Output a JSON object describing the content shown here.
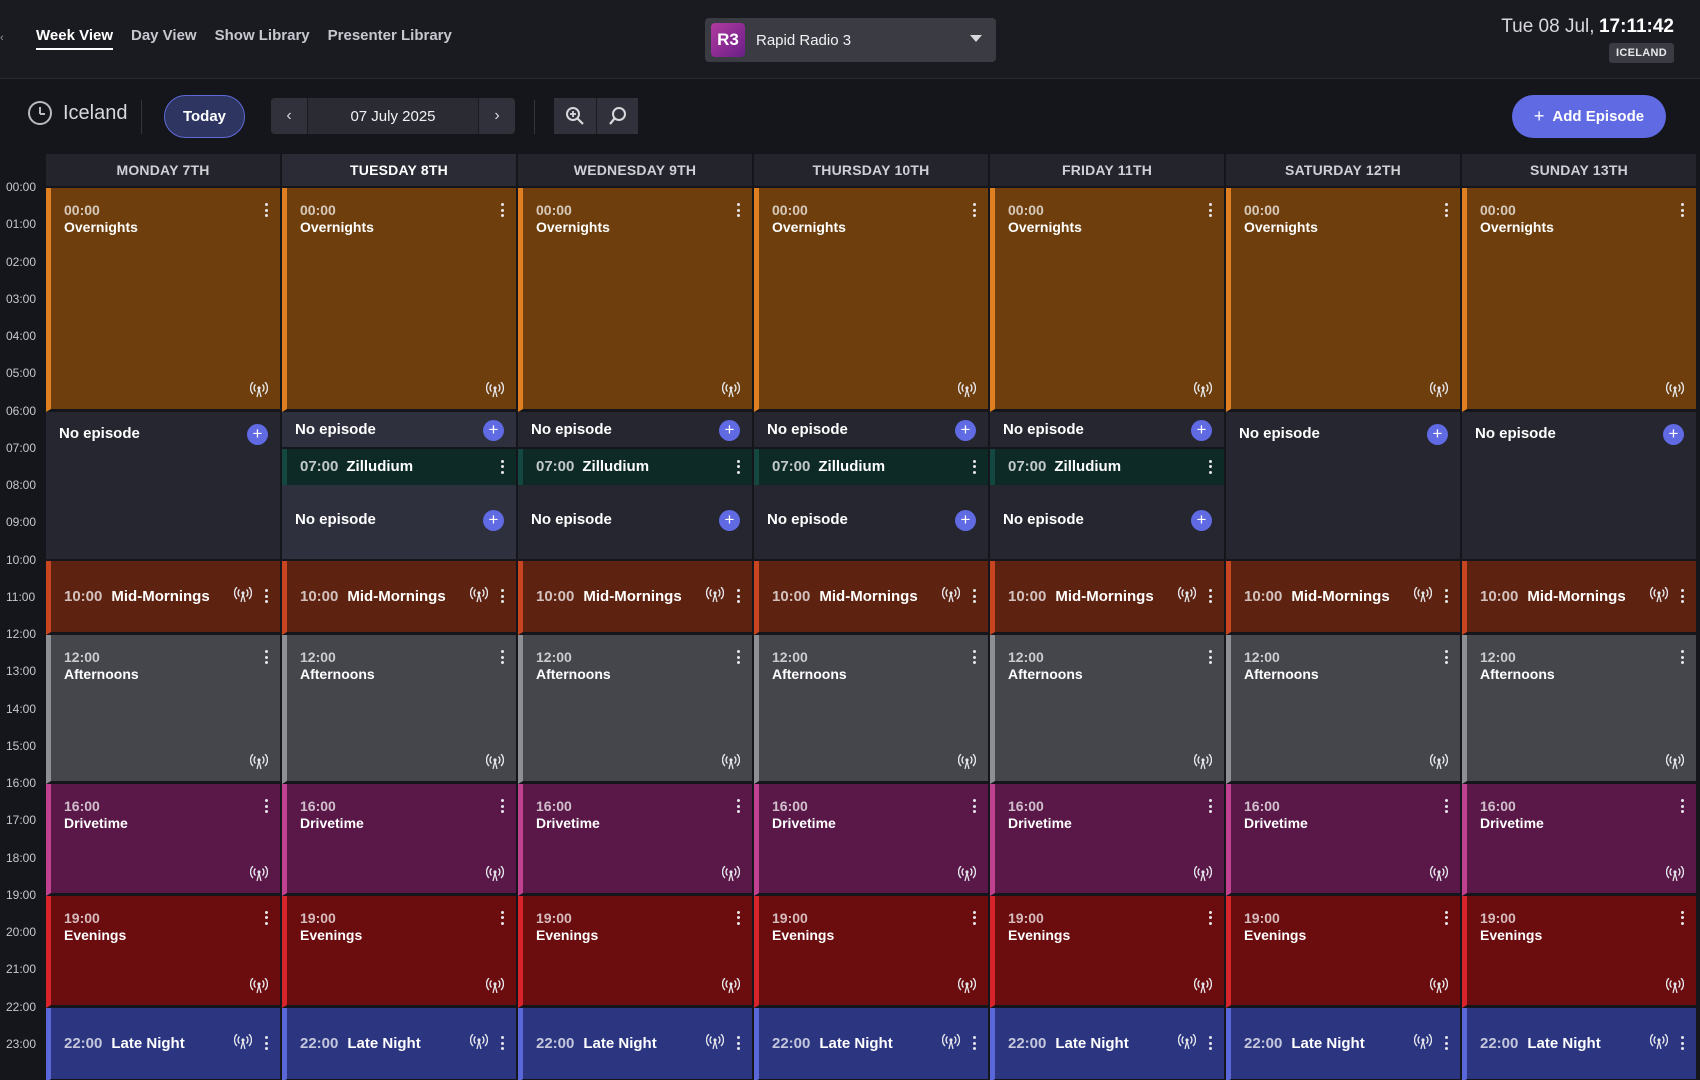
{
  "nav": {
    "items": [
      "Week View",
      "Day View",
      "Show Library",
      "Presenter Library"
    ],
    "active": "Week View"
  },
  "station": {
    "badge": "R3",
    "name": "Rapid Radio 3"
  },
  "clock": {
    "date": "Tue 08 Jul,",
    "time": "17:11:42",
    "timezone_badge": "ICELAND"
  },
  "toolbar": {
    "timezone_label": "Iceland",
    "today_label": "Today",
    "current_date": "07 July 2025",
    "prev_arrow": "‹",
    "next_arrow": "›",
    "add_episode_label": "Add Episode"
  },
  "hours": [
    "00:00",
    "01:00",
    "02:00",
    "03:00",
    "04:00",
    "05:00",
    "06:00",
    "07:00",
    "08:00",
    "09:00",
    "10:00",
    "11:00",
    "12:00",
    "13:00",
    "14:00",
    "15:00",
    "16:00",
    "17:00",
    "18:00",
    "19:00",
    "20:00",
    "21:00",
    "22:00",
    "23:00"
  ],
  "days": [
    {
      "label": "MONDAY 7TH",
      "today": false,
      "split": false
    },
    {
      "label": "TUESDAY 8TH",
      "today": true,
      "split": true
    },
    {
      "label": "WEDNESDAY 9TH",
      "today": false,
      "split": true
    },
    {
      "label": "THURSDAY 10TH",
      "today": false,
      "split": true
    },
    {
      "label": "FRIDAY 11TH",
      "today": false,
      "split": true
    },
    {
      "label": "SATURDAY 12TH",
      "today": false,
      "split": false
    },
    {
      "label": "SUNDAY 13TH",
      "today": false,
      "split": false
    }
  ],
  "shows": [
    {
      "key": "overnights",
      "time": "00:00",
      "name": "Overnights",
      "bg": "#6e3e0d",
      "border": "#e07f21",
      "layout": "stacked",
      "live_icon": true
    },
    {
      "key": "mid",
      "time": "10:00",
      "name": "Mid-Mornings",
      "bg": "#5e2310",
      "border": "#c8451f",
      "layout": "inline",
      "live_icon": true
    },
    {
      "key": "afternoons",
      "time": "12:00",
      "name": "Afternoons",
      "bg": "#45464c",
      "border": "#8e8f95",
      "layout": "stacked",
      "live_icon": true
    },
    {
      "key": "drivetime",
      "time": "16:00",
      "name": "Drivetime",
      "bg": "#5a1848",
      "border": "#c0418f",
      "layout": "stacked",
      "live_icon": true
    },
    {
      "key": "evenings",
      "time": "19:00",
      "name": "Evenings",
      "bg": "#6b0c0f",
      "border": "#d6242a",
      "layout": "stacked",
      "live_icon": true
    },
    {
      "key": "late",
      "time": "22:00",
      "name": "Late Night",
      "bg": "#2b3580",
      "border": "#5a67d8",
      "layout": "inline",
      "live_icon": true
    }
  ],
  "no_episode_label": "No episode",
  "zilludium": {
    "time": "07:00",
    "name": "Zilludium"
  },
  "colors": {
    "accent": "#5f6ae3",
    "background": "#15161c"
  }
}
